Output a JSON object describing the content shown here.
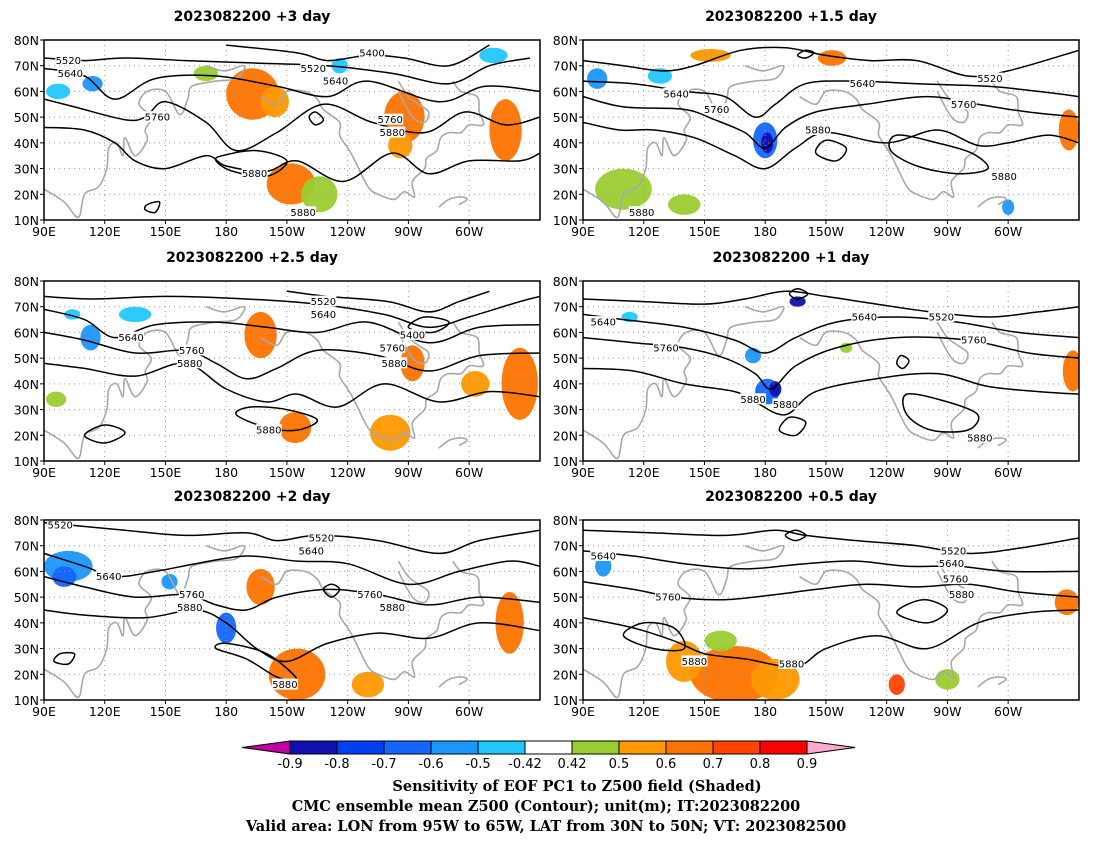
{
  "panels": [
    {
      "id": "p3",
      "title": "2023082200 +3 day"
    },
    {
      "id": "p15",
      "title": "2023082200 +1.5 day"
    },
    {
      "id": "p25",
      "title": "2023082200 +2.5 day"
    },
    {
      "id": "p1",
      "title": "2023082200 +1 day"
    },
    {
      "id": "p2",
      "title": "2023082200 +2 day"
    },
    {
      "id": "p05",
      "title": "2023082200 +0.5 day"
    }
  ],
  "axes": {
    "lat_labels": [
      "80N",
      "70N",
      "60N",
      "50N",
      "40N",
      "30N",
      "20N",
      "10N"
    ],
    "lon_labels": [
      "90E",
      "120E",
      "150E",
      "180",
      "150W",
      "120W",
      "90W",
      "60W"
    ]
  },
  "contour_values": [
    "5400",
    "5520",
    "5640",
    "5760",
    "5880"
  ],
  "contour_labels": {
    "p3": [
      {
        "t": "5520",
        "lon": 102,
        "lat": 72
      },
      {
        "t": "5640",
        "lon": 103,
        "lat": 67
      },
      {
        "t": "5520",
        "lon": 223,
        "lat": 69
      },
      {
        "t": "5640",
        "lon": 234,
        "lat": 64
      },
      {
        "t": "5400",
        "lon": 252,
        "lat": 75
      },
      {
        "t": "5760",
        "lon": 146,
        "lat": 50
      },
      {
        "t": "5760",
        "lon": 261,
        "lat": 49
      },
      {
        "t": "5880",
        "lon": 262,
        "lat": 44
      },
      {
        "t": "5880",
        "lon": 194,
        "lat": 28
      },
      {
        "t": "5880",
        "lon": 218,
        "lat": 13
      }
    ],
    "p15": [
      {
        "t": "5640",
        "lon": 136,
        "lat": 59
      },
      {
        "t": "5760",
        "lon": 156,
        "lat": 53
      },
      {
        "t": "5880",
        "lon": 206,
        "lat": 45
      },
      {
        "t": "5640",
        "lon": 228,
        "lat": 63
      },
      {
        "t": "5520",
        "lon": 291,
        "lat": 65
      },
      {
        "t": "5760",
        "lon": 278,
        "lat": 55
      },
      {
        "t": "5880",
        "lon": 298,
        "lat": 27
      },
      {
        "t": "5880",
        "lon": 119,
        "lat": 13
      }
    ],
    "p25": [
      {
        "t": "5520",
        "lon": 228,
        "lat": 72
      },
      {
        "t": "5640",
        "lon": 228,
        "lat": 67
      },
      {
        "t": "5400",
        "lon": 272,
        "lat": 59
      },
      {
        "t": "5640",
        "lon": 133,
        "lat": 58
      },
      {
        "t": "5760",
        "lon": 163,
        "lat": 53
      },
      {
        "t": "5880",
        "lon": 162,
        "lat": 48
      },
      {
        "t": "5760",
        "lon": 262,
        "lat": 54
      },
      {
        "t": "5880",
        "lon": 263,
        "lat": 48
      },
      {
        "t": "5880",
        "lon": 201,
        "lat": 22
      }
    ],
    "p1": [
      {
        "t": "5640",
        "lon": 100,
        "lat": 64
      },
      {
        "t": "5760",
        "lon": 131,
        "lat": 54
      },
      {
        "t": "5640",
        "lon": 229,
        "lat": 66
      },
      {
        "t": "5520",
        "lon": 267,
        "lat": 66
      },
      {
        "t": "5760",
        "lon": 283,
        "lat": 57
      },
      {
        "t": "5880",
        "lon": 174,
        "lat": 34
      },
      {
        "t": "5880",
        "lon": 190,
        "lat": 32
      },
      {
        "t": "5880",
        "lon": 286,
        "lat": 19
      }
    ],
    "p2": [
      {
        "t": "5520",
        "lon": 98,
        "lat": 78
      },
      {
        "t": "5640",
        "lon": 122,
        "lat": 58
      },
      {
        "t": "5760",
        "lon": 163,
        "lat": 51
      },
      {
        "t": "5880",
        "lon": 162,
        "lat": 46
      },
      {
        "t": "5520",
        "lon": 227,
        "lat": 73
      },
      {
        "t": "5640",
        "lon": 222,
        "lat": 68
      },
      {
        "t": "5760",
        "lon": 251,
        "lat": 51
      },
      {
        "t": "5880",
        "lon": 262,
        "lat": 46
      },
      {
        "t": "5880",
        "lon": 209,
        "lat": 16
      }
    ],
    "p05": [
      {
        "t": "5640",
        "lon": 100,
        "lat": 66
      },
      {
        "t": "5760",
        "lon": 132,
        "lat": 50
      },
      {
        "t": "5880",
        "lon": 145,
        "lat": 25
      },
      {
        "t": "5880",
        "lon": 193,
        "lat": 24
      },
      {
        "t": "5520",
        "lon": 273,
        "lat": 68
      },
      {
        "t": "5640",
        "lon": 272,
        "lat": 63
      },
      {
        "t": "5760",
        "lon": 274,
        "lat": 57
      },
      {
        "t": "5880",
        "lon": 277,
        "lat": 51
      }
    ]
  },
  "colorbar": {
    "labels": [
      "-0.9",
      "-0.8",
      "-0.7",
      "-0.6",
      "-0.5",
      "-0.42",
      "0.42",
      "0.5",
      "0.6",
      "0.7",
      "0.8",
      "0.9"
    ],
    "colors": [
      "#1010b0",
      "#0040f0",
      "#1466ff",
      "#1c96ff",
      "#20c8ff",
      "#ffffff",
      "#9acd32",
      "#ff9900",
      "#ff7300",
      "#ff4400",
      "#ff0000"
    ],
    "low_extend_color": "#c000a0",
    "high_extend_color": "#ffaacc"
  },
  "caption": {
    "line1": "Sensitivity of EOF PC1 to Z500 field (Shaded)",
    "line2": "CMC ensemble mean Z500 (Contour); unit(m); IT:2023082200",
    "line3": "Valid area: LON from 95W to 65W, LAT from 30N to 50N; VT: 2023082500"
  }
}
